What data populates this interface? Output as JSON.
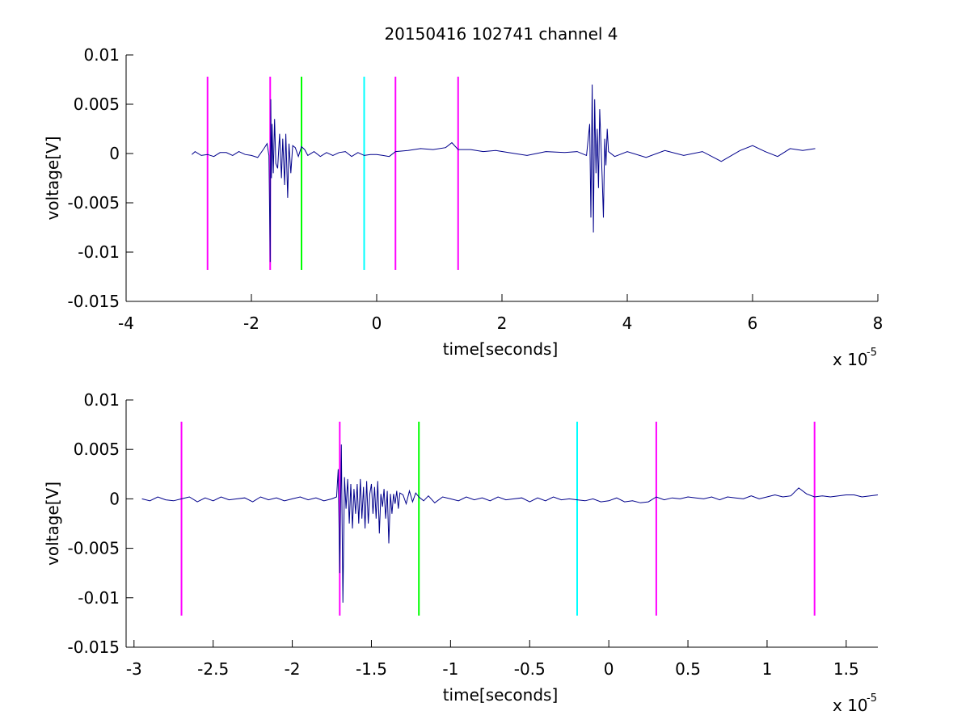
{
  "figure": {
    "title": "20150416 102741 channel 4",
    "background": "#ffffff",
    "trace_color": "#00008b"
  },
  "chart_data": [
    {
      "type": "line",
      "title": "20150416 102741 channel 4",
      "xlabel": "time[seconds]",
      "ylabel": "voltage[V]",
      "x_exponent_label": "x 10",
      "x_exponent": "-5",
      "xlim": [
        -4,
        8
      ],
      "ylim": [
        -0.015,
        0.01
      ],
      "x_ticks": [
        -4,
        -2,
        0,
        2,
        4,
        6,
        8
      ],
      "x_tick_labels": [
        "-4",
        "-2",
        "0",
        "2",
        "4",
        "6",
        "8"
      ],
      "y_ticks": [
        0.01,
        0.005,
        0,
        -0.005,
        -0.01,
        -0.015
      ],
      "y_tick_labels": [
        "0.01",
        "0.005",
        "0",
        "-0.005",
        "-0.01",
        "-0.015"
      ],
      "grid": false,
      "markers": [
        {
          "x": -2.7,
          "y_range": [
            -0.0118,
            0.0078
          ],
          "color": "#ff00ff"
        },
        {
          "x": -1.7,
          "y_range": [
            -0.0118,
            0.0078
          ],
          "color": "#ff00ff"
        },
        {
          "x": -1.2,
          "y_range": [
            -0.0118,
            0.0078
          ],
          "color": "#00ff00"
        },
        {
          "x": -0.2,
          "y_range": [
            -0.0118,
            0.0078
          ],
          "color": "#00ffff"
        },
        {
          "x": 0.3,
          "y_range": [
            -0.0118,
            0.0078
          ],
          "color": "#ff00ff"
        },
        {
          "x": 1.3,
          "y_range": [
            -0.0118,
            0.0078
          ],
          "color": "#ff00ff"
        }
      ],
      "series": [
        {
          "x": [
            -2.95,
            -2.9,
            -2.8,
            -2.7,
            -2.6,
            -2.5,
            -2.4,
            -2.3,
            -2.2,
            -2.1,
            -2.0,
            -1.9,
            -1.8,
            -1.75,
            -1.72,
            -1.7,
            -1.69,
            -1.68,
            -1.67,
            -1.65,
            -1.63,
            -1.61,
            -1.58,
            -1.55,
            -1.52,
            -1.5,
            -1.47,
            -1.45,
            -1.42,
            -1.4,
            -1.37,
            -1.34,
            -1.3,
            -1.25,
            -1.2,
            -1.15,
            -1.1,
            -1.0,
            -0.9,
            -0.8,
            -0.7,
            -0.6,
            -0.5,
            -0.4,
            -0.3,
            -0.2,
            -0.1,
            0.0,
            0.1,
            0.2,
            0.3,
            0.5,
            0.7,
            0.9,
            1.1,
            1.2,
            1.3,
            1.5,
            1.7,
            1.9,
            2.1,
            2.4,
            2.7,
            3.0,
            3.2,
            3.35,
            3.4,
            3.42,
            3.44,
            3.46,
            3.48,
            3.5,
            3.52,
            3.54,
            3.56,
            3.6,
            3.62,
            3.64,
            3.66,
            3.68,
            3.7,
            3.8,
            4.0,
            4.3,
            4.6,
            4.9,
            5.2,
            5.5,
            5.8,
            6.0,
            6.2,
            6.4,
            6.6,
            6.8,
            7.0
          ],
          "y": [
            -0.0001,
            0.0002,
            -0.0002,
            -0.0001,
            -0.0003,
            0.0001,
            0.0001,
            -0.0002,
            0.0002,
            -0.0001,
            -0.0002,
            -0.0004,
            0.0005,
            0.001,
            -0.0002,
            -0.011,
            0.0055,
            -0.0025,
            0.003,
            -0.002,
            0.0035,
            -0.001,
            -0.0015,
            0.002,
            -0.0025,
            0.0015,
            -0.0032,
            0.002,
            -0.0045,
            0.001,
            -0.002,
            0.0008,
            0.0006,
            -0.0003,
            0.0007,
            0.0004,
            -0.0002,
            0.0002,
            -0.0003,
            0.0001,
            -0.0002,
            0.0001,
            0.0002,
            -0.0003,
            0.0001,
            -0.0002,
            -0.0001,
            -0.0001,
            -0.0002,
            -0.0003,
            0.0002,
            0.0003,
            0.0005,
            0.0004,
            0.0006,
            0.0011,
            0.0004,
            0.0004,
            0.0002,
            0.0003,
            0.0001,
            -0.0002,
            0.0002,
            0.0001,
            0.0002,
            -0.0002,
            0.003,
            -0.0065,
            0.007,
            -0.008,
            0.0055,
            -0.002,
            0.0025,
            -0.0035,
            0.0045,
            -0.0025,
            -0.0065,
            0.0015,
            -0.0012,
            0.0025,
            0.0002,
            -0.0003,
            0.0002,
            -0.0004,
            0.0003,
            -0.0002,
            0.0002,
            -0.0008,
            0.0003,
            0.0008,
            0.0002,
            -0.0003,
            0.0005,
            0.0003,
            0.0005
          ]
        }
      ]
    },
    {
      "type": "line",
      "title": "",
      "xlabel": "time[seconds]",
      "ylabel": "voltage[V]",
      "x_exponent_label": "x 10",
      "x_exponent": "-5",
      "xlim": [
        -3.05,
        1.7
      ],
      "ylim": [
        -0.015,
        0.01
      ],
      "x_ticks": [
        -3,
        -2.5,
        -2,
        -1.5,
        -1,
        -0.5,
        0,
        0.5,
        1,
        1.5
      ],
      "x_tick_labels": [
        "-3",
        "-2.5",
        "-2",
        "-1.5",
        "-1",
        "-0.5",
        "0",
        "0.5",
        "1",
        "1.5"
      ],
      "y_ticks": [
        0.01,
        0.005,
        0,
        -0.005,
        -0.01,
        -0.015
      ],
      "y_tick_labels": [
        "0.01",
        "0.005",
        "0",
        "-0.005",
        "-0.01",
        "-0.015"
      ],
      "grid": false,
      "markers": [
        {
          "x": -2.7,
          "y_range": [
            -0.0118,
            0.0078
          ],
          "color": "#ff00ff"
        },
        {
          "x": -1.7,
          "y_range": [
            -0.0118,
            0.0078
          ],
          "color": "#ff00ff"
        },
        {
          "x": -1.2,
          "y_range": [
            -0.0118,
            0.0078
          ],
          "color": "#00ff00"
        },
        {
          "x": -0.2,
          "y_range": [
            -0.0118,
            0.0078
          ],
          "color": "#00ffff"
        },
        {
          "x": 0.3,
          "y_range": [
            -0.0118,
            0.0078
          ],
          "color": "#ff00ff"
        },
        {
          "x": 1.3,
          "y_range": [
            -0.0118,
            0.0078
          ],
          "color": "#ff00ff"
        }
      ],
      "series": [
        {
          "x": [
            -2.95,
            -2.9,
            -2.85,
            -2.8,
            -2.75,
            -2.7,
            -2.65,
            -2.6,
            -2.55,
            -2.5,
            -2.45,
            -2.4,
            -2.35,
            -2.3,
            -2.25,
            -2.2,
            -2.15,
            -2.1,
            -2.05,
            -2.0,
            -1.95,
            -1.9,
            -1.85,
            -1.8,
            -1.75,
            -1.72,
            -1.71,
            -1.7,
            -1.69,
            -1.68,
            -1.67,
            -1.66,
            -1.65,
            -1.64,
            -1.63,
            -1.62,
            -1.61,
            -1.6,
            -1.59,
            -1.58,
            -1.57,
            -1.56,
            -1.55,
            -1.54,
            -1.53,
            -1.52,
            -1.51,
            -1.5,
            -1.49,
            -1.48,
            -1.47,
            -1.46,
            -1.45,
            -1.44,
            -1.43,
            -1.42,
            -1.41,
            -1.4,
            -1.39,
            -1.38,
            -1.37,
            -1.36,
            -1.35,
            -1.34,
            -1.33,
            -1.32,
            -1.3,
            -1.28,
            -1.26,
            -1.24,
            -1.22,
            -1.2,
            -1.17,
            -1.14,
            -1.1,
            -1.05,
            -1.0,
            -0.95,
            -0.9,
            -0.85,
            -0.8,
            -0.75,
            -0.7,
            -0.65,
            -0.6,
            -0.55,
            -0.5,
            -0.45,
            -0.4,
            -0.35,
            -0.3,
            -0.25,
            -0.2,
            -0.15,
            -0.1,
            -0.05,
            0.0,
            0.05,
            0.1,
            0.15,
            0.2,
            0.25,
            0.3,
            0.35,
            0.4,
            0.45,
            0.5,
            0.55,
            0.6,
            0.65,
            0.7,
            0.75,
            0.8,
            0.85,
            0.9,
            0.95,
            1.0,
            1.05,
            1.1,
            1.15,
            1.2,
            1.25,
            1.3,
            1.35,
            1.4,
            1.45,
            1.5,
            1.55,
            1.6,
            1.65,
            1.7
          ],
          "y": [
            0.0,
            -0.0002,
            0.0002,
            -0.0001,
            -0.0002,
            0.0,
            0.0002,
            -0.0003,
            0.0001,
            -0.0002,
            0.0002,
            -0.0001,
            0.0,
            0.0001,
            -0.0003,
            0.0002,
            -0.0001,
            0.0001,
            -0.0002,
            0.0,
            0.0002,
            -0.0001,
            0.0001,
            -0.0002,
            0.0,
            0.0002,
            0.003,
            -0.0075,
            0.0055,
            -0.0105,
            0.0022,
            -0.001,
            0.002,
            -0.0025,
            0.0015,
            -0.003,
            0.001,
            -0.0015,
            0.0015,
            -0.0025,
            0.002,
            -0.002,
            0.0012,
            -0.003,
            0.0018,
            -0.0025,
            0.0005,
            0.0015,
            -0.0015,
            0.0012,
            -0.002,
            0.0018,
            -0.0035,
            0.0005,
            -0.0008,
            0.001,
            -0.002,
            0.0008,
            -0.0045,
            0.0005,
            -0.0015,
            0.0005,
            -0.0005,
            0.0008,
            -0.001,
            0.0006,
            0.0004,
            -0.0005,
            0.0008,
            -0.0003,
            0.0006,
            0.0002,
            -0.0002,
            0.0003,
            -0.0004,
            0.0002,
            0.0,
            -0.0002,
            0.0002,
            -0.0001,
            0.0001,
            -0.0002,
            0.0002,
            -0.0001,
            0.0,
            0.0001,
            -0.0003,
            0.0001,
            -0.0002,
            0.0002,
            -0.0001,
            0.0,
            -0.0001,
            -0.0002,
            0.0,
            -0.0003,
            -0.0002,
            0.0001,
            -0.0003,
            -0.0002,
            -0.0004,
            -0.0003,
            0.0002,
            -0.0001,
            0.0001,
            0.0,
            0.0002,
            0.0001,
            0.0,
            0.0002,
            -0.0001,
            0.0002,
            0.0001,
            0.0,
            0.0003,
            0.0,
            0.0002,
            0.0004,
            0.0002,
            0.0003,
            0.0011,
            0.0005,
            0.0002,
            0.0003,
            0.0002,
            0.0003,
            0.0004,
            0.0004,
            0.0002,
            0.0003,
            0.0004
          ]
        }
      ]
    }
  ]
}
